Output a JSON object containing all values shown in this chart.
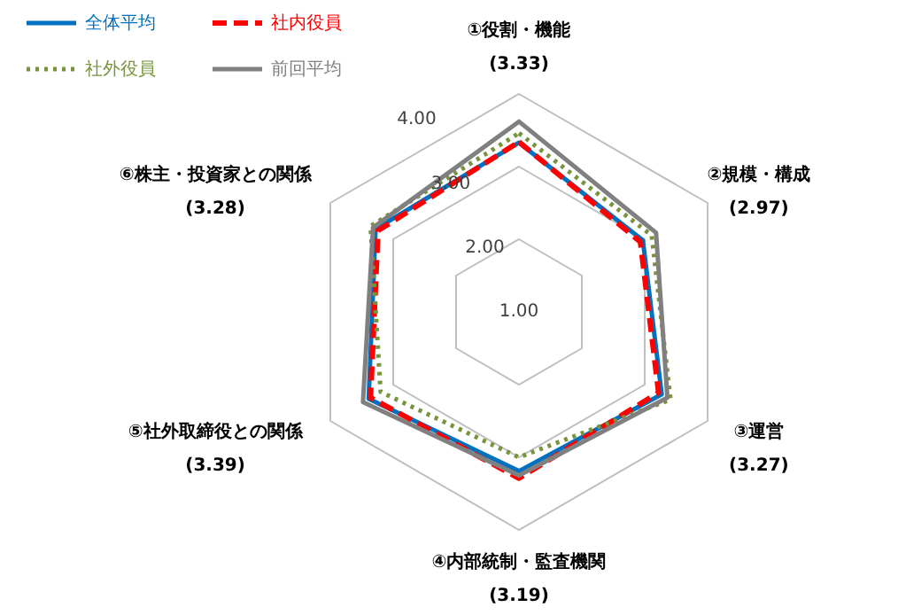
{
  "chart_data": {
    "type": "radar",
    "categories": [
      "①役割・機能\n(3.33)",
      "②規模・構成\n(2.97)",
      "③運営\n(3.27)",
      "④内部統制・監査機関\n(3.19)",
      "⑤社外取締役との関係\n(3.39)",
      "⑥株主・投資家との関係\n(3.28)"
    ],
    "series": [
      {
        "name": "全体平均",
        "color": "#0070c0",
        "line_style": "solid",
        "values": [
          3.33,
          2.97,
          3.27,
          3.19,
          3.39,
          3.28
        ]
      },
      {
        "name": "社内役員",
        "color": "#ff0000",
        "line_style": "dashed",
        "values": [
          3.34,
          2.93,
          3.22,
          3.29,
          3.36,
          3.24
        ]
      },
      {
        "name": "社外役員",
        "color": "#77933c",
        "line_style": "dotted",
        "values": [
          3.46,
          3.11,
          3.41,
          3.0,
          3.2,
          3.36
        ]
      },
      {
        "name": "前回平均",
        "color": "#808080",
        "line_style": "solid",
        "values": [
          3.62,
          3.18,
          3.36,
          3.25,
          3.48,
          3.32
        ]
      }
    ],
    "ylim": [
      1,
      4
    ],
    "yticks": [
      {
        "value": 1,
        "label": "1.00"
      },
      {
        "value": 2,
        "label": "2.00"
      },
      {
        "value": 3,
        "label": "3.00"
      },
      {
        "value": 4,
        "label": "4.00"
      }
    ],
    "grid": true,
    "legend": "top left",
    "marker": "none"
  }
}
